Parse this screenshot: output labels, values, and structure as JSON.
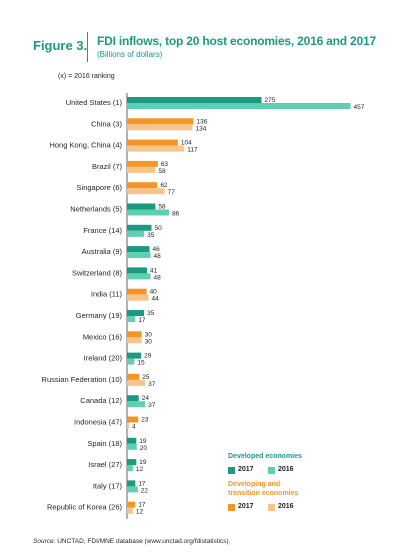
{
  "header": {
    "figure_label": "Figure 3.",
    "title": "FDI inflows, top 20 host economies, 2016 and 2017",
    "subtitle": "(Billions of dollars)",
    "ranking_note": "(x) = 2016 ranking"
  },
  "legend": {
    "developed_heading": "Developed economies",
    "developing_heading_line1": "Developing and",
    "developing_heading_line2": "transition economies",
    "year_2017": "2017",
    "year_2016": "2016"
  },
  "source": {
    "prefix": "Source:",
    "text": " UNCTAD, FDI/MNE database (www.unctad.org/fdistatistics)."
  },
  "colors": {
    "developed_2017": "#1a9a80",
    "developed_2016": "#5fcfb3",
    "developing_2017": "#f39626",
    "developing_2016": "#f8c48c",
    "title": "#1a9a80",
    "developing_heading": "#f39626"
  },
  "chart_data": {
    "type": "bar",
    "orientation": "horizontal",
    "xlim": [
      0,
      460
    ],
    "categories": [
      "United States (1)",
      "China (3)",
      "Hong Kong, China (4)",
      "Brazil (7)",
      "Singapore (6)",
      "Netherlands (5)",
      "France (14)",
      "Australia (9)",
      "Switzerland (8)",
      "India (11)",
      "Germany (19)",
      "Mexico (16)",
      "Ireland (20)",
      "Russian Federation (10)",
      "Canada (12)",
      "Indonesia (47)",
      "Spain (18)",
      "Israel (27)",
      "Italy (17)",
      "Republic of Korea (26)"
    ],
    "group": [
      "developed",
      "developing",
      "developing",
      "developing",
      "developing",
      "developed",
      "developed",
      "developed",
      "developed",
      "developing",
      "developed",
      "developing",
      "developed",
      "developing",
      "developed",
      "developing",
      "developed",
      "developed",
      "developed",
      "developing"
    ],
    "series": [
      {
        "name": "2017",
        "values": [
          275,
          136,
          104,
          63,
          62,
          58,
          50,
          46,
          41,
          40,
          35,
          30,
          29,
          25,
          24,
          23,
          19,
          19,
          17,
          17
        ]
      },
      {
        "name": "2016",
        "values": [
          457,
          134,
          117,
          58,
          77,
          86,
          35,
          48,
          48,
          44,
          17,
          30,
          15,
          37,
          37,
          4,
          20,
          12,
          22,
          12
        ]
      }
    ]
  }
}
